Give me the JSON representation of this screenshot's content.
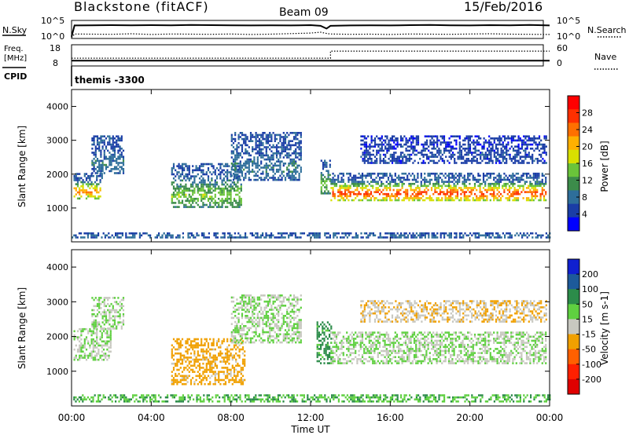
{
  "header": {
    "station": "Blackstone (fitACF)",
    "beam": "Beam 09",
    "date": "15/Feb/2016"
  },
  "chart_data": [
    {
      "type": "line",
      "panel": "noise",
      "ylabel": "N.Sky",
      "ylabel_right": "N.Search",
      "yticks": [
        "10^5",
        "10^0"
      ],
      "yticks_right": [
        "10^5",
        "10^0"
      ],
      "x_hours": [
        0,
        0.15,
        1,
        2,
        3,
        4,
        5,
        6,
        7,
        8,
        9,
        10,
        11,
        12,
        12.5,
        12.8,
        13,
        14,
        15,
        16,
        17,
        18,
        19,
        20,
        21,
        22,
        23,
        24
      ],
      "sky_level": [
        0.1,
        0.72,
        0.73,
        0.74,
        0.73,
        0.74,
        0.73,
        0.75,
        0.74,
        0.73,
        0.72,
        0.73,
        0.72,
        0.74,
        0.7,
        0.55,
        0.7,
        0.72,
        0.73,
        0.72,
        0.74,
        0.75,
        0.73,
        0.72,
        0.74,
        0.73,
        0.75,
        0.72
      ],
      "search_level": [
        0.05,
        0.25,
        0.24,
        0.23,
        0.26,
        0.22,
        0.25,
        0.24,
        0.23,
        0.25,
        0.22,
        0.24,
        0.27,
        0.3,
        0.35,
        0.28,
        0.25,
        0.23,
        0.24,
        0.22,
        0.25,
        0.24,
        0.23,
        0.25,
        0.26,
        0.24,
        0.23,
        0.22
      ]
    },
    {
      "type": "line",
      "panel": "frequency_nave",
      "ylabel": "Freq.\n[MHz]",
      "ylabel_right": "Nave",
      "yticks": [
        "18",
        "8"
      ],
      "yticks_right": [
        "60",
        "0"
      ],
      "freq_steps": [
        {
          "start": 0,
          "end": 24,
          "mhz": 10.5
        }
      ],
      "nave_steps": [
        {
          "start": 0,
          "end": 13,
          "value": 22
        },
        {
          "start": 13,
          "end": 24,
          "value": 42
        }
      ]
    },
    {
      "type": "heatmap",
      "panel": "power",
      "cpid_label": "CPID",
      "program": "themis -3300",
      "ylabel": "Slant Range [km]",
      "ylim": [
        0,
        4500
      ],
      "yticks": [
        1000,
        2000,
        3000,
        4000
      ],
      "xlim": [
        0,
        24
      ],
      "colorbar_label": "Power [dB]",
      "colorbar_ticks": [
        "28",
        "24",
        "20",
        "16",
        "12",
        "8",
        "4"
      ],
      "colors": [
        "#0000ff",
        "#1a3da6",
        "#2e6e9a",
        "#3c8c4a",
        "#6ac43a",
        "#d8e000",
        "#ffb000",
        "#ff7000",
        "#ff3000",
        "#ff0000"
      ],
      "regions": [
        {
          "t0": 0.1,
          "t1": 1.5,
          "r0": 1250,
          "r1": 2000,
          "core_db": 22,
          "edge_db": 6
        },
        {
          "t0": 1.0,
          "t1": 2.6,
          "r0": 2000,
          "r1": 3100,
          "core_db": 8,
          "edge_db": 5
        },
        {
          "t0": 5.0,
          "t1": 8.5,
          "r0": 1000,
          "r1": 2300,
          "core_db": 14,
          "edge_db": 6
        },
        {
          "t0": 8.0,
          "t1": 11.5,
          "r0": 1800,
          "r1": 3200,
          "core_db": 8,
          "edge_db": 5
        },
        {
          "t0": 12.5,
          "t1": 13.0,
          "r0": 1400,
          "r1": 2400,
          "core_db": 14,
          "edge_db": 6
        },
        {
          "t0": 13.0,
          "t1": 23.8,
          "r0": 1200,
          "r1": 2000,
          "core_db": 26,
          "edge_db": 6
        },
        {
          "t0": 14.5,
          "t1": 23.8,
          "r0": 2300,
          "r1": 3100,
          "core_db": 5,
          "edge_db": 4
        },
        {
          "t0": 0.0,
          "t1": 24.0,
          "r0": 100,
          "r1": 250,
          "core_db": 8,
          "edge_db": 5
        }
      ]
    },
    {
      "type": "heatmap",
      "panel": "velocity",
      "ylabel": "Slant Range [km]",
      "ylim": [
        0,
        4500
      ],
      "yticks": [
        1000,
        2000,
        3000,
        4000
      ],
      "xlim": [
        0,
        24
      ],
      "xticks": [
        "00:00",
        "04:00",
        "08:00",
        "12:00",
        "16:00",
        "20:00",
        "00:00"
      ],
      "xlabel": "Time UT",
      "colorbar_label": "Velocity [m s-1]",
      "colorbar_ticks": [
        "200",
        "100",
        "50",
        "15",
        "-15",
        "-50",
        "-100",
        "-200"
      ],
      "colors": [
        "#1020d0",
        "#1d5a9a",
        "#2c8c4a",
        "#5fd040",
        "#c8c8c0",
        "#f0a000",
        "#ff6000",
        "#ff2000",
        "#e00000"
      ],
      "regions": [
        {
          "t0": 0.1,
          "t1": 2.0,
          "r0": 1300,
          "r1": 2200,
          "vel": 0
        },
        {
          "t0": 1.0,
          "t1": 2.6,
          "r0": 2200,
          "r1": 3100,
          "vel": 0
        },
        {
          "t0": 5.0,
          "t1": 8.7,
          "r0": 600,
          "r1": 1900,
          "vel": -40
        },
        {
          "t0": 8.0,
          "t1": 11.5,
          "r0": 1800,
          "r1": 3200,
          "vel": 0
        },
        {
          "t0": 12.3,
          "t1": 13.0,
          "r0": 1200,
          "r1": 2400,
          "vel": 40
        },
        {
          "t0": 13.0,
          "t1": 23.8,
          "r0": 1200,
          "r1": 2100,
          "vel": 0
        },
        {
          "t0": 14.5,
          "t1": 23.8,
          "r0": 2400,
          "r1": 3000,
          "vel": -30
        },
        {
          "t0": 0.0,
          "t1": 24.0,
          "r0": 100,
          "r1": 300,
          "vel": 30
        }
      ]
    }
  ]
}
